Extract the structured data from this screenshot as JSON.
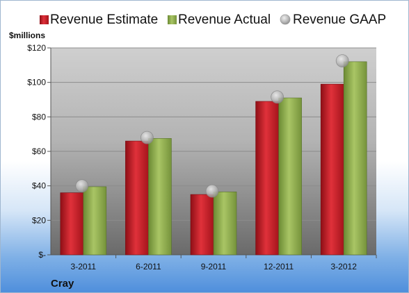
{
  "colors": {
    "estimate": "#c81e28",
    "actual": "#8fae4e",
    "gaap": "#b4b4b4"
  },
  "chart_data": {
    "type": "bar",
    "ylabel": "$millions",
    "company": "Cray",
    "categories": [
      "3-2011",
      "6-2011",
      "9-2011",
      "12-2011",
      "3-2012"
    ],
    "ylim": [
      0,
      120
    ],
    "yticks": [
      0,
      20,
      40,
      60,
      80,
      100,
      120
    ],
    "ytick_labels": [
      "$-",
      "$20",
      "$40",
      "$60",
      "$80",
      "$100",
      "$120"
    ],
    "grid": true,
    "legend_position": "top",
    "series": [
      {
        "name": "Revenue Estimate",
        "kind": "bar",
        "values": [
          36,
          66,
          35,
          89,
          99
        ]
      },
      {
        "name": "Revenue Actual",
        "kind": "bar",
        "values": [
          39.5,
          67.5,
          36.5,
          91,
          112
        ]
      },
      {
        "name": "Revenue GAAP",
        "kind": "marker",
        "values": [
          40,
          68,
          37,
          91.5,
          112.5
        ]
      }
    ]
  }
}
